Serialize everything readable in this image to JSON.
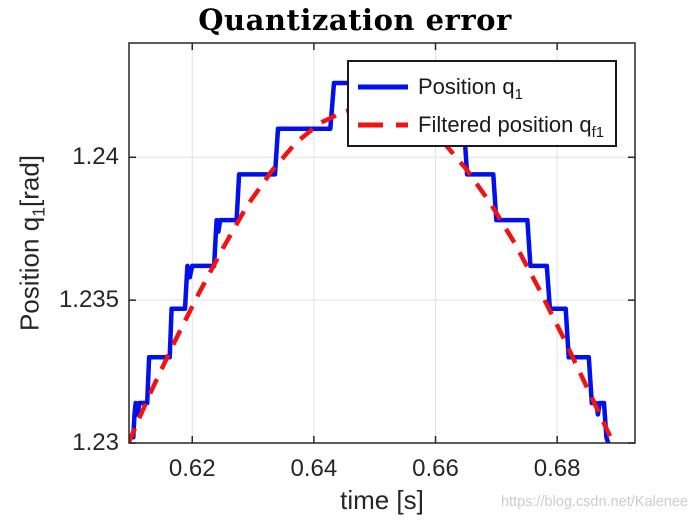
{
  "title": "Quantization error",
  "watermark": "https://blog.csdn.net/Kalenee",
  "axes": {
    "xlabel": "time [s]",
    "ylabel_pre": "Position q",
    "ylabel_sub": "1",
    "ylabel_post": "[rad]",
    "xticks": [
      0.62,
      0.64,
      0.66,
      0.68
    ],
    "xtick_labels": [
      "0.62",
      "0.64",
      "0.66",
      "0.68"
    ],
    "yticks": [
      1.23,
      1.235,
      1.24
    ],
    "ytick_labels": [
      "1.23",
      "1.235",
      "1.24"
    ]
  },
  "legend": {
    "items": [
      {
        "label": "Position q",
        "sub": "1",
        "color": "#0010ee",
        "style": "solid"
      },
      {
        "label": "Filtered position q",
        "sub": "f1",
        "color": "#f31212",
        "style": "dashed"
      }
    ]
  },
  "colors": {
    "blue_line": "#0010ee",
    "red_line": "#f31212",
    "grid": "#e2e2e2",
    "axis": "#262626",
    "watermark": "#c9ccd6"
  },
  "chart_data": {
    "type": "line",
    "title": "Quantization error",
    "xlabel": "time [s]",
    "ylabel": "Position q_1 [rad]",
    "xlim": [
      0.6096,
      0.6928
    ],
    "ylim": [
      1.23,
      1.244
    ],
    "grid": true,
    "legend_position": "northeast",
    "quantization_step_rad": 0.00157,
    "series": [
      {
        "name": "Position q_1",
        "color": "#0010ee",
        "line": "solid",
        "width": 4.5,
        "points": [
          [
            0.6096,
            1.23
          ],
          [
            0.6098,
            1.2302
          ],
          [
            0.6103,
            1.2302
          ],
          [
            0.6105,
            1.231
          ],
          [
            0.6107,
            1.2314
          ],
          [
            0.611,
            1.231
          ],
          [
            0.6113,
            1.2314
          ],
          [
            0.6126,
            1.2314
          ],
          [
            0.6129,
            1.233
          ],
          [
            0.6163,
            1.233
          ],
          [
            0.6166,
            1.2347
          ],
          [
            0.6188,
            1.2347
          ],
          [
            0.6192,
            1.2362
          ],
          [
            0.6196,
            1.2358
          ],
          [
            0.62,
            1.2362
          ],
          [
            0.6236,
            1.2362
          ],
          [
            0.624,
            1.2378
          ],
          [
            0.6243,
            1.2374
          ],
          [
            0.6246,
            1.2378
          ],
          [
            0.6273,
            1.2378
          ],
          [
            0.6277,
            1.2394
          ],
          [
            0.6336,
            1.2394
          ],
          [
            0.6341,
            1.241
          ],
          [
            0.6427,
            1.241
          ],
          [
            0.6433,
            1.2426
          ],
          [
            0.6583,
            1.2426
          ],
          [
            0.6588,
            1.241
          ],
          [
            0.6647,
            1.241
          ],
          [
            0.6652,
            1.2394
          ],
          [
            0.6695,
            1.2394
          ],
          [
            0.67,
            1.2378
          ],
          [
            0.6751,
            1.2378
          ],
          [
            0.6756,
            1.2362
          ],
          [
            0.6783,
            1.2362
          ],
          [
            0.6788,
            1.2347
          ],
          [
            0.6814,
            1.2347
          ],
          [
            0.6819,
            1.233
          ],
          [
            0.6852,
            1.233
          ],
          [
            0.6857,
            1.2314
          ],
          [
            0.6864,
            1.2314
          ],
          [
            0.6867,
            1.231
          ],
          [
            0.687,
            1.2314
          ],
          [
            0.6877,
            1.2314
          ],
          [
            0.6881,
            1.2302
          ],
          [
            0.6884,
            1.23
          ]
        ]
      },
      {
        "name": "Filtered position q_f1",
        "color": "#f31212",
        "line": "dashed",
        "width": 4.5,
        "points": [
          [
            0.6095,
            1.23
          ],
          [
            0.613,
            1.2317
          ],
          [
            0.617,
            1.2335
          ],
          [
            0.621,
            1.2352
          ],
          [
            0.625,
            1.2368
          ],
          [
            0.629,
            1.2383
          ],
          [
            0.633,
            1.2395
          ],
          [
            0.637,
            1.2405
          ],
          [
            0.641,
            1.2412
          ],
          [
            0.645,
            1.2416
          ],
          [
            0.649,
            1.2418
          ],
          [
            0.653,
            1.2417
          ],
          [
            0.657,
            1.2413
          ],
          [
            0.661,
            1.2406
          ],
          [
            0.665,
            1.2396
          ],
          [
            0.669,
            1.2384
          ],
          [
            0.673,
            1.237
          ],
          [
            0.677,
            1.2354
          ],
          [
            0.681,
            1.2337
          ],
          [
            0.685,
            1.2319
          ],
          [
            0.689,
            1.2301
          ]
        ]
      }
    ]
  }
}
